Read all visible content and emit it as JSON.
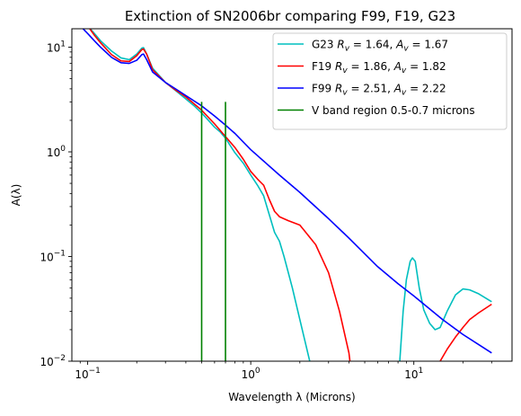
{
  "chart_data": {
    "type": "line",
    "title": "Extinction of SN2006br comparing F99, F19, G23",
    "xlabel": "Wavelength λ (Microns)",
    "ylabel": "A(λ)",
    "xscale": "log",
    "yscale": "log",
    "xlim": [
      0.08,
      40
    ],
    "ylim": [
      0.01,
      15
    ],
    "grid": false,
    "legend_position": "top-right",
    "x_ticks": [
      {
        "value": 0.1,
        "base": "10",
        "exp": "−1"
      },
      {
        "value": 1,
        "base": "10",
        "exp": "0"
      },
      {
        "value": 10,
        "base": "10",
        "exp": "1"
      }
    ],
    "y_ticks": [
      {
        "value": 0.01,
        "base": "10",
        "exp": "−2"
      },
      {
        "value": 0.1,
        "base": "10",
        "exp": "−1"
      },
      {
        "value": 1,
        "base": "10",
        "exp": "0"
      },
      {
        "value": 10,
        "base": "10",
        "exp": "1"
      }
    ],
    "series": [
      {
        "name": "G23",
        "legend": "G23 R_v = 1.64, A_v = 1.67",
        "color": "#00bfbf",
        "points": [
          [
            0.09,
            20.0
          ],
          [
            0.1,
            16.0
          ],
          [
            0.11,
            13.5
          ],
          [
            0.12,
            11.5
          ],
          [
            0.14,
            9.2
          ],
          [
            0.16,
            7.9
          ],
          [
            0.18,
            7.6
          ],
          [
            0.2,
            8.6
          ],
          [
            0.215,
            9.8
          ],
          [
            0.22,
            9.9
          ],
          [
            0.23,
            8.6
          ],
          [
            0.25,
            6.3
          ],
          [
            0.3,
            4.6
          ],
          [
            0.35,
            3.8
          ],
          [
            0.4,
            3.2
          ],
          [
            0.45,
            2.75
          ],
          [
            0.5,
            2.35
          ],
          [
            0.55,
            2.0
          ],
          [
            0.6,
            1.72
          ],
          [
            0.65,
            1.55
          ],
          [
            0.7,
            1.35
          ],
          [
            0.8,
            0.98
          ],
          [
            0.9,
            0.78
          ],
          [
            1.0,
            0.6
          ],
          [
            1.1,
            0.48
          ],
          [
            1.2,
            0.38
          ],
          [
            1.3,
            0.25
          ],
          [
            1.4,
            0.17
          ],
          [
            1.5,
            0.14
          ],
          [
            1.6,
            0.1
          ],
          [
            1.8,
            0.05
          ],
          [
            2.0,
            0.025
          ],
          [
            2.3,
            0.01
          ],
          [
            2.45,
            0.0075
          ]
        ]
      },
      {
        "name": "G23",
        "legend": "",
        "color": "#00bfbf",
        "points": [
          [
            8.0,
            0.0075
          ],
          [
            8.2,
            0.01
          ],
          [
            8.6,
            0.03
          ],
          [
            9.0,
            0.06
          ],
          [
            9.5,
            0.09
          ],
          [
            9.8,
            0.097
          ],
          [
            10.2,
            0.09
          ],
          [
            10.8,
            0.05
          ],
          [
            11.5,
            0.031
          ],
          [
            12.5,
            0.023
          ],
          [
            13.5,
            0.02
          ],
          [
            14.5,
            0.021
          ],
          [
            16.0,
            0.03
          ],
          [
            18.0,
            0.043
          ],
          [
            20.0,
            0.049
          ],
          [
            22.0,
            0.048
          ],
          [
            25.0,
            0.044
          ],
          [
            30.0,
            0.037
          ]
        ]
      },
      {
        "name": "F19",
        "legend": "F19 R_v = 1.86, A_v = 1.82",
        "color": "#ff0000",
        "points": [
          [
            0.09,
            20.0
          ],
          [
            0.1,
            16.0
          ],
          [
            0.11,
            13.0
          ],
          [
            0.12,
            11.0
          ],
          [
            0.14,
            8.5
          ],
          [
            0.16,
            7.4
          ],
          [
            0.18,
            7.3
          ],
          [
            0.2,
            8.3
          ],
          [
            0.215,
            9.5
          ],
          [
            0.22,
            9.6
          ],
          [
            0.23,
            8.6
          ],
          [
            0.25,
            6.1
          ],
          [
            0.3,
            4.6
          ],
          [
            0.35,
            3.85
          ],
          [
            0.4,
            3.35
          ],
          [
            0.5,
            2.5
          ],
          [
            0.6,
            1.85
          ],
          [
            0.7,
            1.4
          ],
          [
            0.8,
            1.1
          ],
          [
            0.9,
            0.85
          ],
          [
            1.0,
            0.65
          ],
          [
            1.1,
            0.55
          ],
          [
            1.2,
            0.48
          ],
          [
            1.3,
            0.35
          ],
          [
            1.4,
            0.27
          ],
          [
            1.5,
            0.24
          ],
          [
            1.7,
            0.22
          ],
          [
            2.0,
            0.2
          ],
          [
            2.5,
            0.13
          ],
          [
            3.0,
            0.07
          ],
          [
            3.5,
            0.03
          ],
          [
            4.0,
            0.012
          ],
          [
            4.15,
            0.0075
          ]
        ]
      },
      {
        "name": "F19",
        "legend": "",
        "color": "#ff0000",
        "points": [
          [
            13.5,
            0.0075
          ],
          [
            14.5,
            0.01
          ],
          [
            16.0,
            0.013
          ],
          [
            18.0,
            0.017
          ],
          [
            20.0,
            0.021
          ],
          [
            22.0,
            0.025
          ],
          [
            25.0,
            0.029
          ],
          [
            30.0,
            0.035
          ]
        ]
      },
      {
        "name": "F99",
        "legend": "F99 R_v = 2.51, A_v = 2.22",
        "color": "#0000ff",
        "points": [
          [
            0.09,
            16.0
          ],
          [
            0.1,
            13.5
          ],
          [
            0.11,
            11.5
          ],
          [
            0.12,
            10.0
          ],
          [
            0.14,
            8.0
          ],
          [
            0.16,
            7.1
          ],
          [
            0.18,
            7.0
          ],
          [
            0.2,
            7.5
          ],
          [
            0.215,
            8.5
          ],
          [
            0.22,
            8.6
          ],
          [
            0.23,
            7.6
          ],
          [
            0.25,
            5.8
          ],
          [
            0.3,
            4.6
          ],
          [
            0.35,
            3.95
          ],
          [
            0.4,
            3.45
          ],
          [
            0.5,
            2.75
          ],
          [
            0.6,
            2.2
          ],
          [
            0.7,
            1.8
          ],
          [
            0.8,
            1.5
          ],
          [
            1.0,
            1.05
          ],
          [
            1.5,
            0.6
          ],
          [
            2.0,
            0.41
          ],
          [
            3.0,
            0.23
          ],
          [
            4.0,
            0.15
          ],
          [
            6.0,
            0.08
          ],
          [
            8.0,
            0.055
          ],
          [
            10.0,
            0.042
          ],
          [
            15.0,
            0.025
          ],
          [
            20.0,
            0.018
          ],
          [
            30.0,
            0.012
          ]
        ]
      },
      {
        "name": "V band",
        "legend": "V band region 0.5-0.7 microns",
        "color": "#008000",
        "segments": [
          {
            "x": 0.5,
            "y": [
              0.01,
              3.0
            ]
          },
          {
            "x": 0.7,
            "y": [
              0.01,
              3.0
            ]
          }
        ]
      }
    ],
    "legend_entries": [
      {
        "color": "#00bfbf",
        "name": "G23",
        "rv": "1.64",
        "av": "1.67"
      },
      {
        "color": "#ff0000",
        "name": "F19",
        "rv": "1.86",
        "av": "1.82"
      },
      {
        "color": "#0000ff",
        "name": "F99",
        "rv": "2.51",
        "av": "2.22"
      },
      {
        "color": "#008000",
        "text": "V band region 0.5-0.7 microns"
      }
    ]
  }
}
